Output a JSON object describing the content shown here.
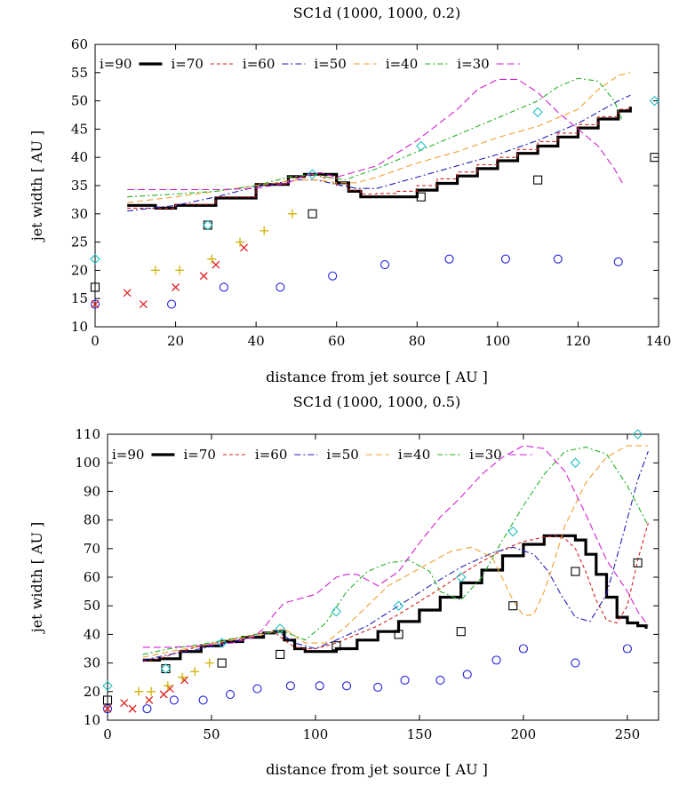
{
  "colors": {
    "i90": "#000000",
    "i70": "#000000",
    "i60": "#d62020",
    "i50": "#1f1fb4",
    "i40": "#f0a030",
    "i30": "#22b022",
    "i_magenta": "#d020d0",
    "obs_circle": "#2020e0",
    "obs_cross": "#e02020",
    "obs_plus": "#d0b000",
    "obs_square": "#000000",
    "obs_diamond": "#20c0c0"
  },
  "chart_data": [
    {
      "type": "line",
      "title": "SC1d (1000, 1000, 0.2)",
      "xlabel": "distance from jet source [ AU ]",
      "ylabel": "jet width [ AU ]",
      "xlim": [
        0,
        140
      ],
      "ylim": [
        10,
        60
      ],
      "xticks": [
        0,
        20,
        40,
        60,
        80,
        100,
        120,
        140
      ],
      "yticks": [
        10,
        15,
        20,
        25,
        30,
        35,
        40,
        45,
        50,
        55,
        60
      ],
      "legend_position": "top-left",
      "legend": [
        "i=90",
        "i=70",
        "i=60",
        "i=50",
        "i=40",
        "i=30"
      ],
      "series": [
        {
          "name": "i=70",
          "style": "i70",
          "step": true,
          "x": [
            8,
            15,
            20,
            30,
            40,
            48,
            52,
            56,
            60,
            63,
            66,
            70,
            75,
            80,
            85,
            90,
            95,
            100,
            105,
            110,
            115,
            120,
            125,
            130,
            133
          ],
          "y": [
            31.5,
            31,
            31.5,
            32.8,
            35.2,
            36.6,
            37,
            37,
            35.5,
            34,
            33,
            33,
            33,
            34.2,
            35.4,
            36.7,
            38,
            39.4,
            40.7,
            42,
            43.6,
            45.2,
            46.8,
            48.2,
            49
          ]
        },
        {
          "name": "i=60",
          "style": "i60",
          "step": true,
          "x": [
            8,
            15,
            20,
            30,
            40,
            48,
            52,
            56,
            60,
            63,
            66,
            70,
            75,
            80,
            85,
            90,
            95,
            100,
            105,
            110,
            115,
            120,
            125,
            130,
            133
          ],
          "y": [
            31,
            31,
            31.7,
            33,
            35.3,
            36.6,
            36.8,
            36.4,
            35,
            34.2,
            33.5,
            33.6,
            34,
            35,
            36.2,
            37.4,
            38.7,
            40,
            41.4,
            42.8,
            44.3,
            45.8,
            47.2,
            48.5,
            49
          ]
        },
        {
          "name": "i=50",
          "style": "i50",
          "x": [
            8,
            20,
            30,
            40,
            50,
            55,
            60,
            65,
            70,
            80,
            90,
            100,
            110,
            120,
            125,
            130,
            133
          ],
          "y": [
            30.5,
            31.5,
            33,
            34.8,
            36,
            36,
            35.2,
            34.5,
            34.5,
            36.5,
            38.5,
            40.5,
            43,
            46,
            48,
            50,
            51
          ]
        },
        {
          "name": "i=40",
          "style": "i40",
          "x": [
            8,
            20,
            30,
            40,
            50,
            55,
            60,
            65,
            70,
            80,
            90,
            100,
            110,
            120,
            125,
            130,
            133
          ],
          "y": [
            32,
            33,
            34,
            35,
            36,
            36,
            35.5,
            35.5,
            36.5,
            39,
            41,
            43.5,
            45.5,
            48.5,
            52,
            54.5,
            55
          ]
        },
        {
          "name": "i=30",
          "style": "i30",
          "x": [
            8,
            20,
            30,
            40,
            48,
            54,
            58,
            62,
            70,
            80,
            90,
            100,
            110,
            115,
            120,
            125,
            129,
            131
          ],
          "y": [
            33,
            33.5,
            34,
            35,
            36.5,
            37,
            36.5,
            36,
            38,
            41,
            44,
            47,
            50,
            52.5,
            54,
            53.5,
            50,
            46.5
          ]
        },
        {
          "name": "",
          "style": "i_magenta",
          "x": [
            8,
            20,
            30,
            40,
            48,
            52,
            56,
            60,
            70,
            80,
            90,
            95,
            100,
            105,
            110,
            115,
            120,
            125,
            129,
            131
          ],
          "y": [
            34.3,
            34.3,
            34.3,
            34.5,
            35.5,
            36.8,
            37.3,
            36.5,
            38.5,
            43,
            48.5,
            52,
            53.8,
            53.8,
            51.5,
            48,
            45,
            42,
            38,
            35.5
          ]
        }
      ],
      "observations": [
        {
          "marker": "circle",
          "style": "obs_circle",
          "x": [
            0,
            19,
            32,
            46,
            59,
            72,
            88,
            102,
            115,
            130
          ],
          "y": [
            14,
            14,
            17,
            17,
            19,
            21,
            22,
            22,
            22,
            21.5
          ]
        },
        {
          "marker": "cross",
          "style": "obs_cross",
          "x": [
            0,
            8,
            12,
            20,
            27,
            30,
            37
          ],
          "y": [
            14,
            16,
            14,
            17,
            19,
            21,
            24
          ]
        },
        {
          "marker": "plus",
          "style": "obs_plus",
          "x": [
            15,
            21,
            29,
            36,
            42,
            49
          ],
          "y": [
            20,
            20,
            22,
            25,
            27,
            30
          ]
        },
        {
          "marker": "square",
          "style": "obs_square",
          "x": [
            0,
            28,
            54,
            81,
            110,
            139
          ],
          "y": [
            17,
            28,
            30,
            33,
            36,
            40
          ]
        },
        {
          "marker": "diamond",
          "style": "obs_diamond",
          "x": [
            0,
            28,
            54,
            81,
            110,
            139
          ],
          "y": [
            22,
            28,
            37,
            42,
            48,
            50
          ]
        }
      ]
    },
    {
      "type": "line",
      "title": "SC1d (1000, 1000, 0.5)",
      "xlabel": "distance from jet source [ AU ]",
      "ylabel": "jet width [ AU ]",
      "xlim": [
        0,
        265
      ],
      "ylim": [
        10,
        110
      ],
      "xticks": [
        0,
        50,
        100,
        150,
        200,
        250
      ],
      "yticks": [
        10,
        20,
        30,
        40,
        50,
        60,
        70,
        80,
        90,
        100,
        110
      ],
      "legend_position": "top",
      "legend": [
        "i=90",
        "i=70",
        "i=60",
        "i=50",
        "i=40",
        "i=30"
      ],
      "series": [
        {
          "name": "i=70",
          "style": "i70",
          "step": true,
          "x": [
            17,
            25,
            35,
            45,
            55,
            65,
            75,
            80,
            85,
            90,
            95,
            100,
            110,
            120,
            130,
            140,
            150,
            160,
            170,
            180,
            190,
            200,
            210,
            215,
            220,
            225,
            230,
            235,
            240,
            245,
            250,
            255,
            259
          ],
          "y": [
            31,
            31.5,
            34,
            36,
            37.5,
            39,
            40.5,
            41,
            38,
            35,
            34,
            34,
            35,
            38,
            41,
            44.5,
            48.5,
            53,
            58,
            62.5,
            67.5,
            71.5,
            74.5,
            74.5,
            74.5,
            73,
            68,
            61,
            53,
            46,
            44,
            43,
            42
          ]
        },
        {
          "name": "i=60",
          "style": "i60",
          "x": [
            17,
            25,
            35,
            45,
            55,
            65,
            75,
            80,
            85,
            90,
            95,
            100,
            110,
            120,
            130,
            140,
            150,
            160,
            170,
            180,
            190,
            200,
            210,
            215,
            220,
            225,
            230,
            235,
            240,
            245,
            250,
            255,
            260
          ],
          "y": [
            30.5,
            31.5,
            34,
            36,
            37.5,
            39,
            40.5,
            41,
            38,
            35.5,
            35,
            35,
            37,
            40,
            43,
            47,
            51.5,
            56,
            61,
            65.5,
            69.5,
            72.5,
            74,
            74.5,
            73.5,
            70,
            62,
            52,
            45,
            44,
            50,
            66,
            79
          ]
        },
        {
          "name": "i=50",
          "style": "i50",
          "x": [
            17,
            30,
            45,
            60,
            75,
            82,
            90,
            100,
            110,
            125,
            140,
            155,
            170,
            185,
            195,
            205,
            212,
            218,
            225,
            232,
            240,
            248,
            255,
            260
          ],
          "y": [
            31,
            33,
            35,
            37.5,
            40,
            41,
            37,
            35,
            38,
            43,
            50,
            57,
            63.5,
            68.5,
            70.5,
            68,
            62,
            54,
            46,
            44.5,
            54,
            75,
            94,
            104
          ]
        },
        {
          "name": "i=40",
          "style": "i40",
          "x": [
            17,
            30,
            45,
            60,
            75,
            85,
            95,
            105,
            115,
            125,
            135,
            145,
            155,
            165,
            175,
            185,
            195,
            200,
            205,
            210,
            215,
            220,
            230,
            240,
            250,
            260
          ],
          "y": [
            32,
            34,
            36,
            38,
            40,
            42,
            37,
            37,
            43,
            50,
            57,
            61,
            65,
            69,
            70.5,
            67,
            52,
            46.5,
            47,
            55,
            66,
            78,
            93,
            102,
            106,
            106
          ]
        },
        {
          "name": "i=30",
          "style": "i30",
          "x": [
            17,
            30,
            45,
            60,
            75,
            85,
            95,
            105,
            115,
            125,
            135,
            145,
            155,
            160,
            170,
            180,
            190,
            200,
            210,
            220,
            230,
            240,
            250,
            260
          ],
          "y": [
            33,
            35,
            36.5,
            38.5,
            40.5,
            41,
            38,
            44,
            55,
            62,
            65,
            66,
            62,
            55,
            52,
            60,
            73,
            85,
            96,
            104,
            105.5,
            103,
            92,
            78
          ]
        },
        {
          "name": "",
          "style": "i_magenta",
          "x": [
            17,
            30,
            45,
            60,
            70,
            75,
            80,
            85,
            90,
            100,
            105,
            110,
            115,
            120,
            125,
            130,
            140,
            150,
            160,
            170,
            180,
            190,
            200,
            210,
            220,
            230,
            240,
            250,
            255,
            260
          ],
          "y": [
            35.5,
            35.5,
            36,
            37,
            39,
            42,
            47,
            51,
            52,
            54,
            57,
            60,
            61,
            61,
            59,
            57,
            62,
            72,
            81,
            88,
            96,
            102,
            106,
            105,
            97,
            82,
            66,
            55,
            48,
            43
          ]
        }
      ],
      "observations": [
        {
          "marker": "circle",
          "style": "obs_circle",
          "x": [
            0,
            19,
            32,
            46,
            59,
            72,
            88,
            102,
            115,
            130,
            143,
            160,
            173,
            187,
            200,
            225,
            250
          ],
          "y": [
            14,
            14,
            17,
            17,
            19,
            21,
            22,
            22,
            22,
            21.5,
            24,
            24,
            26,
            31,
            35,
            30,
            35
          ]
        },
        {
          "marker": "cross",
          "style": "obs_cross",
          "x": [
            0,
            8,
            12,
            20,
            27,
            30,
            37
          ],
          "y": [
            14,
            16,
            14,
            17,
            19,
            21,
            24
          ]
        },
        {
          "marker": "plus",
          "style": "obs_plus",
          "x": [
            15,
            21,
            29,
            36,
            42,
            49
          ],
          "y": [
            20,
            20,
            22,
            25,
            27,
            30
          ]
        },
        {
          "marker": "square",
          "style": "obs_square",
          "x": [
            0,
            28,
            55,
            83,
            110,
            140,
            170,
            195,
            225,
            255
          ],
          "y": [
            17,
            28,
            30,
            33,
            36,
            40,
            41,
            50,
            62,
            65
          ]
        },
        {
          "marker": "diamond",
          "style": "obs_diamond",
          "x": [
            0,
            28,
            55,
            83,
            110,
            140,
            170,
            195,
            225,
            255
          ],
          "y": [
            22,
            28,
            37,
            42,
            48,
            50,
            60,
            76,
            100,
            110
          ]
        }
      ]
    }
  ]
}
